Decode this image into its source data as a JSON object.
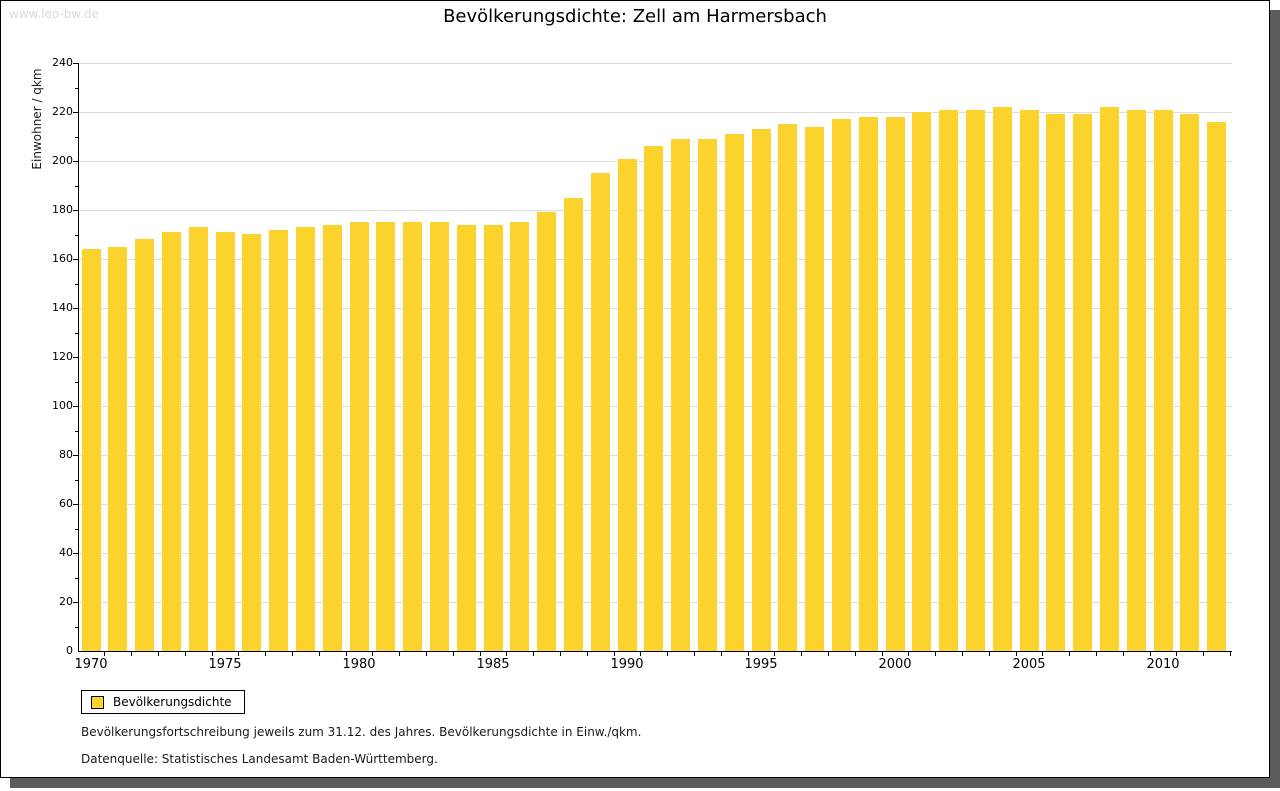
{
  "watermark": "www.leo-bw.de",
  "title": "Bevölkerungsdichte: Zell am Harmersbach",
  "legend": {
    "label": "Bevölkerungsdichte"
  },
  "footnotes": {
    "line1": "Bevölkerungsfortschreibung jeweils zum 31.12. des Jahres. Bevölkerungsdichte in Einw./qkm.",
    "line2": "Datenquelle: Statistisches Landesamt Baden-Württemberg."
  },
  "colors": {
    "bar": "#fcd22c",
    "gridline": "#dddddd",
    "axis": "#000000",
    "shadow": "#5a5a5a",
    "watermark": "#d9d9d9"
  },
  "chart_data": {
    "type": "bar",
    "title": "Bevölkerungsdichte: Zell am Harmersbach",
    "xlabel": "",
    "ylabel": "Einwohner / qkm",
    "ylim": [
      0,
      240
    ],
    "y_tick_step": 20,
    "y_minor_tick_step": 10,
    "grid": true,
    "legend_position": "bottom-left",
    "series_name": "Bevölkerungsdichte",
    "categories": [
      1970,
      1971,
      1972,
      1973,
      1974,
      1975,
      1976,
      1977,
      1978,
      1979,
      1980,
      1981,
      1982,
      1983,
      1984,
      1985,
      1986,
      1987,
      1988,
      1989,
      1990,
      1991,
      1992,
      1993,
      1994,
      1995,
      1996,
      1997,
      1998,
      1999,
      2000,
      2001,
      2002,
      2003,
      2004,
      2005,
      2006,
      2007,
      2008,
      2009,
      2010,
      2011,
      2012
    ],
    "values": [
      164,
      165,
      168,
      171,
      173,
      171,
      170,
      172,
      173,
      174,
      175,
      175,
      175,
      175,
      174,
      174,
      175,
      179,
      185,
      195,
      201,
      206,
      209,
      209,
      211,
      213,
      215,
      214,
      217,
      218,
      218,
      220,
      221,
      221,
      222,
      221,
      219,
      219,
      222,
      221,
      221,
      219,
      216
    ],
    "x_tick_labels": [
      "1970",
      "1975",
      "1980",
      "1985",
      "1990",
      "1995",
      "2000",
      "2005",
      "2010"
    ],
    "y_tick_labels": [
      "0",
      "20",
      "40",
      "60",
      "80",
      "100",
      "120",
      "140",
      "160",
      "180",
      "200",
      "220",
      "240"
    ]
  }
}
